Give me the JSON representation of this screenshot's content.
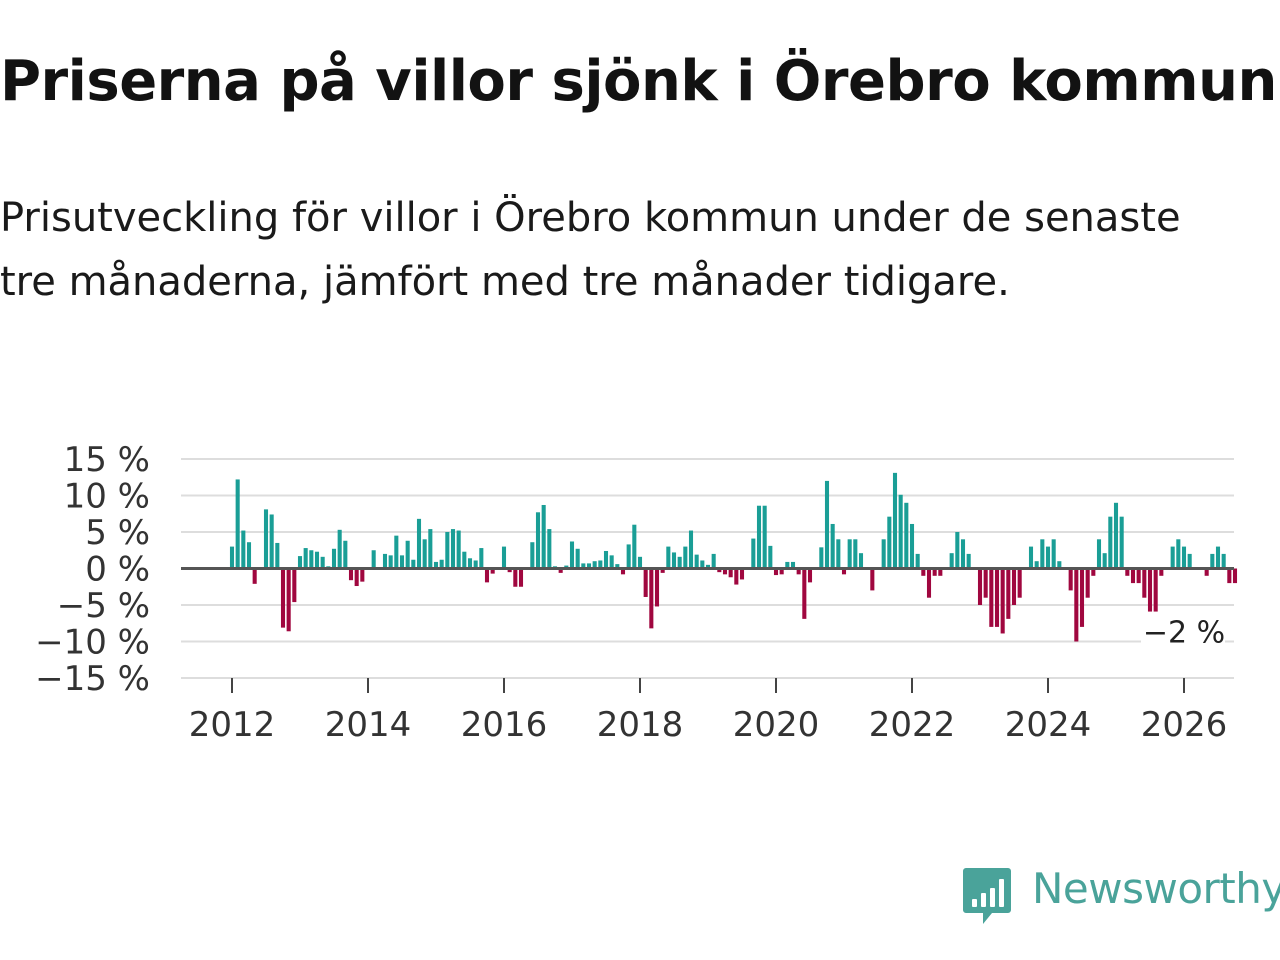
{
  "header": {
    "title": "Priserna på villor sjönk i Örebro kommun",
    "subtitle": "Prisutveckling för villor i Örebro kommun under de senaste tre månaderna, jämfört med tre månader tidigare."
  },
  "brand": {
    "name": "Newsworthy",
    "color": "#4aa39a"
  },
  "colors": {
    "positive": "#1a9e96",
    "negative": "#a0073f",
    "grid": "#dddddd",
    "zero": "#555555",
    "text": "#333333"
  },
  "chart_data": {
    "type": "bar",
    "title": "Priserna på villor sjönk i Örebro kommun",
    "xlabel": "",
    "ylabel": "",
    "ylim": [
      -15,
      15
    ],
    "yticks": [
      15,
      10,
      5,
      0,
      -5,
      -10,
      -15
    ],
    "ytick_labels": [
      "15 %",
      "10 %",
      "5 %",
      "0 %",
      "−5 %",
      "−10 %",
      "−15 %"
    ],
    "xticks": [
      "2012",
      "2014",
      "2016",
      "2018",
      "2020",
      "2022",
      "2024",
      "2026"
    ],
    "x_start": 2012,
    "x_end": 2026,
    "start_year": 2012,
    "start_month": 1,
    "unit": "%",
    "last_value_label": "−2 %",
    "values": [
      3,
      12.2,
      5.2,
      3.6,
      -2.1,
      0,
      8.1,
      7.4,
      3.5,
      -8.1,
      -8.6,
      -4.6,
      1.7,
      2.8,
      2.5,
      2.3,
      1.6,
      0.3,
      2.7,
      5.3,
      3.8,
      -1.6,
      -2.4,
      -1.8,
      0,
      2.5,
      0,
      2.0,
      1.8,
      4.5,
      1.8,
      3.8,
      1.2,
      6.8,
      4.0,
      5.4,
      0.9,
      1.2,
      5.0,
      5.4,
      5.2,
      2.3,
      1.4,
      1.1,
      2.8,
      -1.9,
      -0.7,
      0,
      3.0,
      -0.5,
      -2.5,
      -2.5,
      0,
      3.6,
      7.7,
      8.7,
      5.4,
      0.3,
      -0.6,
      0.4,
      3.7,
      2.7,
      0.7,
      0.7,
      1.0,
      1.1,
      2.4,
      1.8,
      0.6,
      -0.8,
      3.3,
      6.0,
      1.6,
      -3.9,
      -8.2,
      -5.2,
      -0.6,
      3.0,
      2.2,
      1.6,
      3.0,
      5.2,
      1.9,
      1.1,
      0.5,
      2.0,
      -0.5,
      -0.8,
      -1.2,
      -2.2,
      -1.5,
      0,
      4.1,
      8.6,
      8.6,
      3.1,
      -0.9,
      -0.8,
      0.9,
      0.9,
      -0.8,
      -6.9,
      -1.9,
      0,
      2.9,
      12.0,
      6.1,
      4.0,
      -0.8,
      4.0,
      4.0,
      2.1,
      0,
      -3.0,
      0,
      4.0,
      7.1,
      13.1,
      10.1,
      9.0,
      6.1,
      2.0,
      -1.0,
      -4.0,
      -1.0,
      -1.0,
      0,
      2.1,
      5.0,
      4.0,
      2.0,
      0,
      -5.0,
      -4.0,
      -8.0,
      -8.0,
      -8.9,
      -6.9,
      -5.0,
      -4.0,
      0,
      3.0,
      1.0,
      4.0,
      3.0,
      4.0,
      1.0,
      0,
      -3.0,
      -10.0,
      -8.0,
      -4.0,
      -1.0,
      4.0,
      2.1,
      7.1,
      9.0,
      7.1,
      -1.0,
      -2.0,
      -2.0,
      -4.0,
      -6.0,
      -6.0,
      -1.0,
      0,
      3.0,
      4.0,
      3.0,
      2.0,
      0,
      0,
      -1.0,
      2.0,
      3.0,
      2.0,
      -2.0,
      -2.0
    ]
  }
}
